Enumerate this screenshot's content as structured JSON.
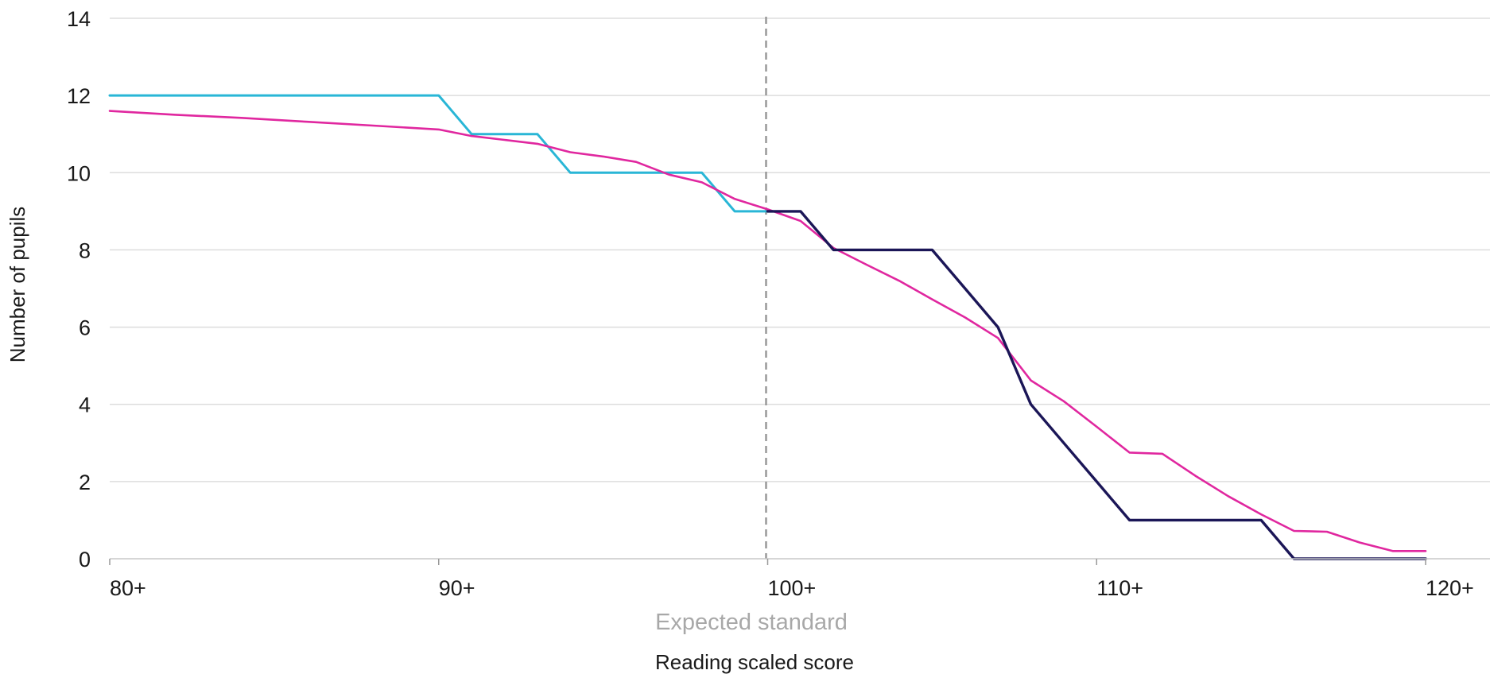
{
  "chart_data": {
    "type": "line",
    "title": "",
    "xlabel": "Reading scaled score",
    "ylabel": "Number of pupils",
    "xlim": [
      80,
      121
    ],
    "ylim": [
      0,
      14
    ],
    "x_ticks": [
      {
        "value": 80,
        "label": "80+"
      },
      {
        "value": 90,
        "label": "90+"
      },
      {
        "value": 100,
        "label": "100+"
      },
      {
        "value": 110,
        "label": "110+"
      },
      {
        "value": 120,
        "label": "120+"
      }
    ],
    "y_ticks": [
      0,
      2,
      4,
      6,
      8,
      10,
      12,
      14
    ],
    "grid": "horizontal",
    "reference_line": {
      "x": 100,
      "label": "Expected standard",
      "color": "#999999"
    },
    "series": [
      {
        "color": "#29b6d6",
        "x": [
          80,
          90,
          91,
          93,
          94,
          95,
          96,
          97,
          98,
          99,
          100
        ],
        "y": [
          12,
          12,
          11,
          11,
          10,
          10,
          10,
          10,
          10,
          9,
          9
        ]
      },
      {
        "color": "#1b1657",
        "x": [
          100,
          101,
          102,
          103,
          104,
          105,
          106,
          107,
          108,
          109,
          110,
          111,
          112,
          113,
          114,
          115,
          116,
          117,
          118,
          119,
          120
        ],
        "y": [
          9,
          9,
          8,
          8,
          8,
          8,
          7,
          6,
          4,
          3,
          2,
          1,
          1,
          1,
          1,
          1,
          0,
          0,
          0,
          0,
          0
        ]
      },
      {
        "color": "#e0279f",
        "x": [
          80,
          82,
          84,
          86,
          88,
          90,
          91,
          92,
          93,
          94,
          95,
          96,
          97,
          98,
          99,
          100,
          101,
          102,
          103,
          104,
          105,
          106,
          107,
          108,
          109,
          110,
          111,
          112,
          113,
          114,
          115,
          116,
          117,
          118,
          119,
          120
        ],
        "y": [
          11.6,
          11.5,
          11.42,
          11.32,
          11.22,
          11.12,
          10.95,
          10.85,
          10.75,
          10.53,
          10.42,
          10.28,
          9.95,
          9.75,
          9.32,
          9.05,
          8.75,
          8.05,
          7.62,
          7.2,
          6.72,
          6.25,
          5.72,
          4.62,
          4.08,
          3.42,
          2.75,
          2.72,
          2.15,
          1.62,
          1.15,
          0.72,
          0.7,
          0.42,
          0.2,
          0.2
        ]
      }
    ]
  }
}
